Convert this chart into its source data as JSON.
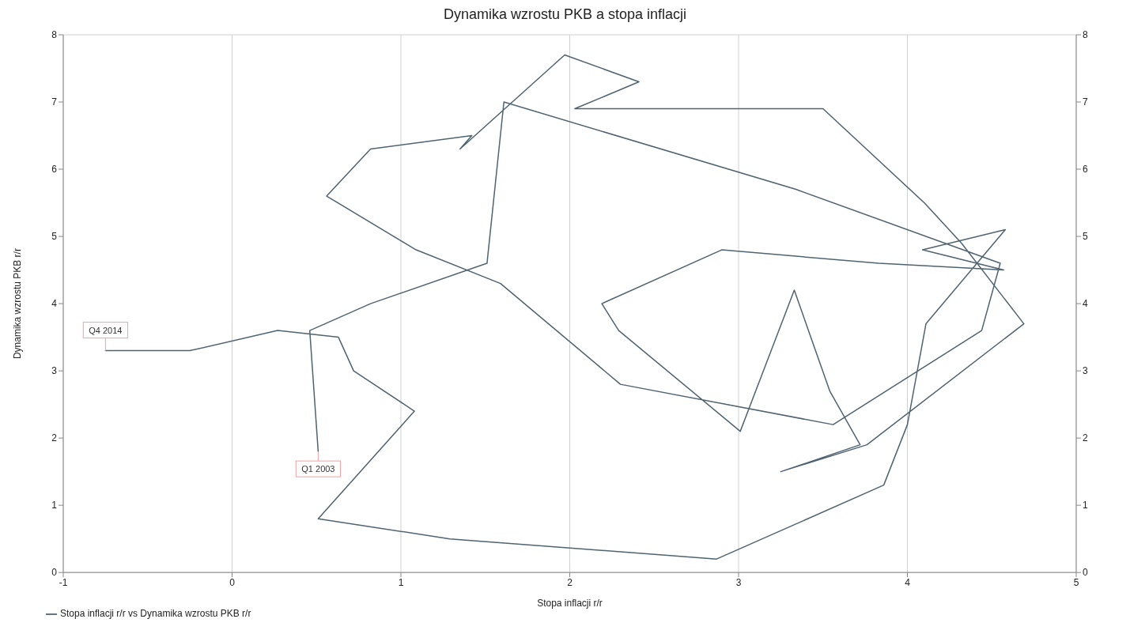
{
  "chart_data": {
    "type": "line",
    "title": "Dynamika wzrostu PKB a stopa inflacji",
    "xlabel": "Stopa inflacji r/r",
    "ylabel": "Dynamika wzrostu PKB r/r",
    "series": [
      {
        "name": "Stopa inflacji r/r vs Dynamika wzrostu PKB r/r",
        "color": "#4f6370",
        "x": [
          0.51,
          0.46,
          0.82,
          1.51,
          1.61,
          3.34,
          4.55,
          4.44,
          3.56,
          2.3,
          1.59,
          1.09,
          0.56,
          0.82,
          1.42,
          1.35,
          1.97,
          2.41,
          2.03,
          3.5,
          4.1,
          4.32,
          4.69,
          3.76,
          3.25,
          3.72,
          3.54,
          3.33,
          3.01,
          2.29,
          2.19,
          2.9,
          3.83,
          4.57,
          4.09,
          4.58,
          4.11,
          4.0,
          3.86,
          2.87,
          1.29,
          0.51,
          1.08,
          0.72,
          0.63,
          0.27,
          -0.25,
          -0.75
        ],
        "values": [
          1.8,
          3.6,
          4.0,
          4.6,
          7.0,
          5.7,
          4.6,
          3.6,
          2.2,
          2.8,
          4.3,
          4.8,
          5.6,
          6.3,
          6.5,
          6.3,
          7.7,
          7.3,
          6.9,
          6.9,
          5.5,
          4.9,
          3.7,
          1.9,
          1.5,
          1.9,
          2.7,
          4.2,
          2.1,
          3.6,
          4.0,
          4.8,
          4.6,
          4.5,
          4.8,
          5.1,
          3.7,
          2.2,
          1.3,
          0.2,
          0.5,
          0.8,
          2.4,
          3.0,
          3.5,
          3.6,
          3.3,
          3.3
        ]
      }
    ],
    "annotations": [
      {
        "text": "Q1 2003",
        "x": 0.51,
        "y": 1.8
      },
      {
        "text": "Q4 2014",
        "x": -0.75,
        "y": 3.3
      }
    ],
    "xlim": [
      -1,
      5
    ],
    "xticks": [
      -1,
      0,
      1,
      2,
      3,
      4,
      5
    ],
    "ylim": [
      0,
      8
    ],
    "yticks": [
      0,
      1,
      2,
      3,
      4,
      5,
      6,
      7,
      8
    ],
    "y2lim": [
      0,
      8
    ],
    "y2ticks": [
      0,
      1,
      2,
      3,
      4,
      5,
      6,
      7,
      8
    ],
    "grid": true,
    "legend": "bottom left",
    "marker": "none",
    "line_style": "solid"
  }
}
